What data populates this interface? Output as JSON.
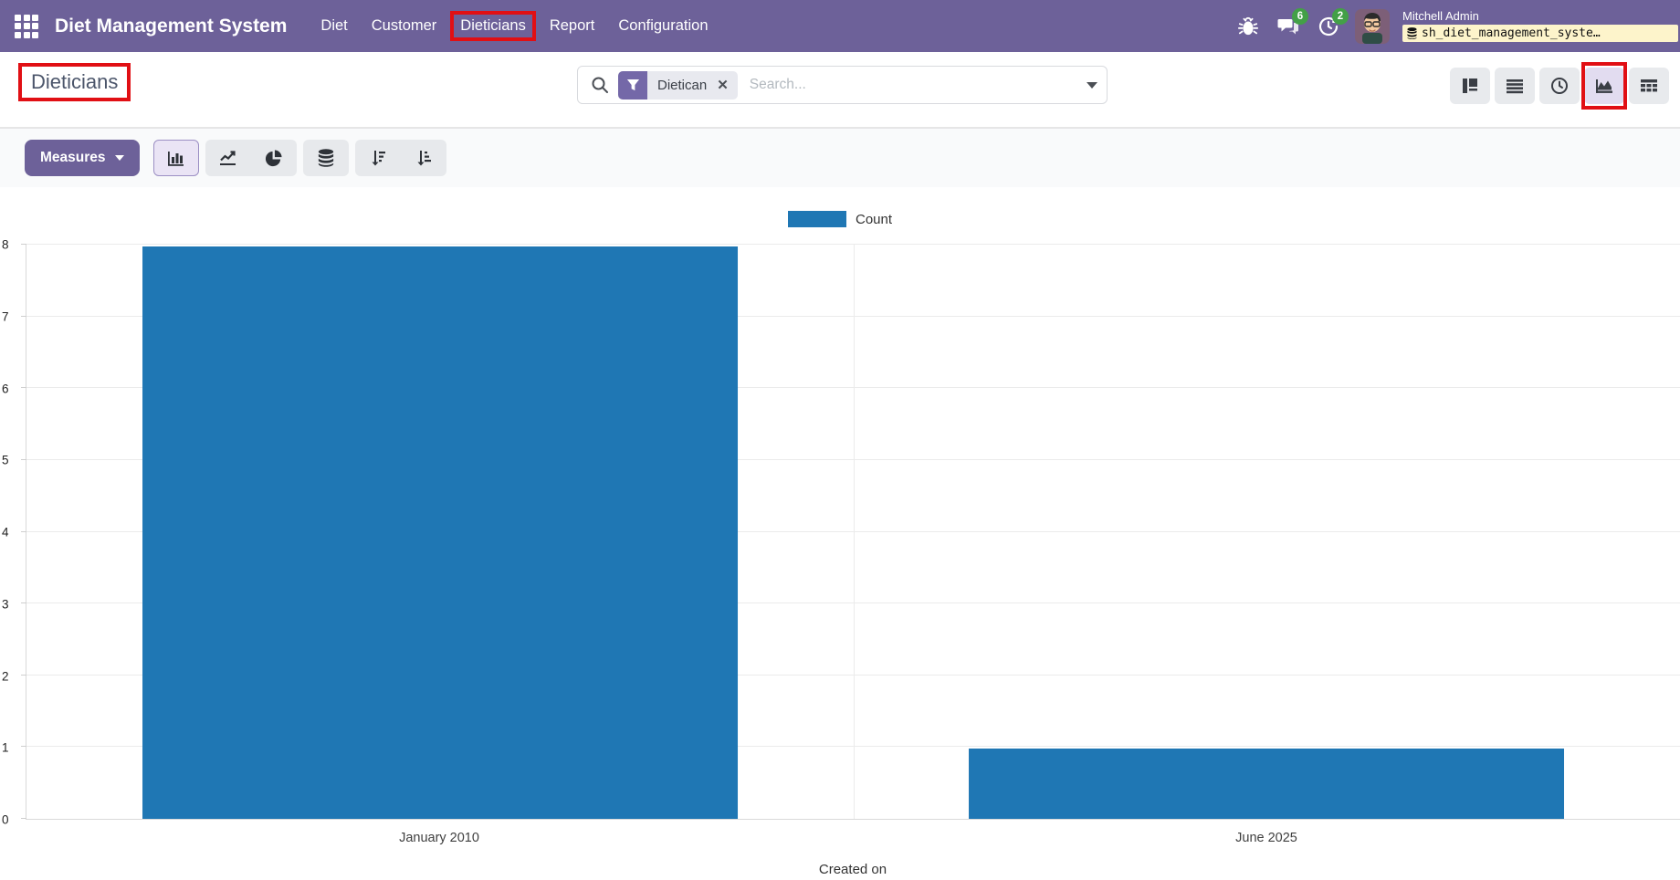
{
  "navbar": {
    "app_name": "Diet Management System",
    "menu": [
      {
        "label": "Diet"
      },
      {
        "label": "Customer"
      },
      {
        "label": "Dieticians",
        "highlighted": true
      },
      {
        "label": "Report"
      },
      {
        "label": "Configuration"
      }
    ],
    "chat_badge": "6",
    "activity_badge": "2",
    "user": {
      "name": "Mitchell Admin",
      "database": "sh_diet_management_syste…"
    }
  },
  "control_panel": {
    "breadcrumb_title": "Dieticians",
    "search": {
      "facet_label": "Dietican",
      "placeholder": "Search..."
    },
    "view_switcher": {
      "active_view": "graph"
    }
  },
  "toolbar": {
    "measures_label": "Measures",
    "active_chart_type": "bar"
  },
  "colors": {
    "accent_purple": "#6d6199",
    "bar_blue": "#1f77b4",
    "annotation_red": "#e10f14",
    "badge_green": "#43a047"
  },
  "chart_data": {
    "type": "bar",
    "title": "",
    "categories": [
      "January 2010",
      "June 2025"
    ],
    "values": [
      8,
      1
    ],
    "series_name": "Count",
    "bar_color": "#1f77b4",
    "xlabel": "Created on",
    "ylabel": "",
    "ylim": [
      0,
      8
    ],
    "yticks": [
      0,
      1,
      2,
      3,
      4,
      5,
      6,
      7,
      8
    ],
    "grid": true,
    "legend_position": "top-center"
  }
}
